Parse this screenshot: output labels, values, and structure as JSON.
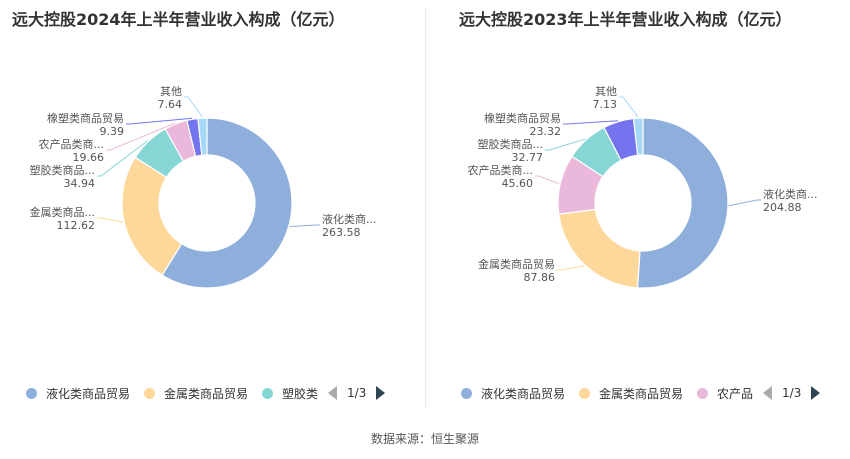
{
  "chart_data": [
    {
      "type": "pie",
      "title": "远大控股2024年上半年营业收入构成（亿元）",
      "categories": [
        "液化类商品贸易",
        "金属类商品贸易",
        "塑胶类商品贸易",
        "农产品类商品贸易",
        "橡塑类商品贸易",
        "其他"
      ],
      "labels": [
        "液化类商...",
        "金属类商品...",
        "塑胶类商品...",
        "农产品类商...",
        "橡塑类商品贸易",
        "其他"
      ],
      "values": [
        263.58,
        112.62,
        34.94,
        19.66,
        9.39,
        7.64
      ],
      "value_labels": [
        "263.58",
        "112.62",
        "34.94",
        "19.66",
        "9.39",
        "7.64"
      ],
      "colors": [
        "#8eaedc",
        "#fdd89a",
        "#85d6d4",
        "#e9b8da",
        "#7474ee",
        "#a6d8f8"
      ],
      "legend": {
        "items": [
          "液化类商品贸易",
          "金属类商品贸易",
          "塑胶类"
        ],
        "page": "1/3",
        "placement": "bottom"
      }
    },
    {
      "type": "pie",
      "title": "远大控股2023年上半年营业收入构成（亿元）",
      "categories": [
        "液化类商品贸易",
        "金属类商品贸易",
        "农产品类商品贸易",
        "塑胶类商品贸易",
        "橡塑类商品贸易",
        "其他"
      ],
      "labels": [
        "液化类商...",
        "金属类商品贸易",
        "农产品类商...",
        "塑胶类商品...",
        "橡塑类商品贸易",
        "其他"
      ],
      "values": [
        204.88,
        87.86,
        45.6,
        32.77,
        23.32,
        7.13
      ],
      "value_labels": [
        "204.88",
        "87.86",
        "45.60",
        "32.77",
        "23.32",
        "7.13"
      ],
      "colors": [
        "#8eaedc",
        "#fdd89a",
        "#e9b8da",
        "#85d6d4",
        "#7474ee",
        "#a6d8f8"
      ],
      "legend": {
        "items": [
          "液化类商品贸易",
          "金属类商品贸易",
          "农产品"
        ],
        "page": "1/3",
        "placement": "bottom"
      }
    }
  ],
  "footer": {
    "source": "数据来源：恒生聚源"
  }
}
